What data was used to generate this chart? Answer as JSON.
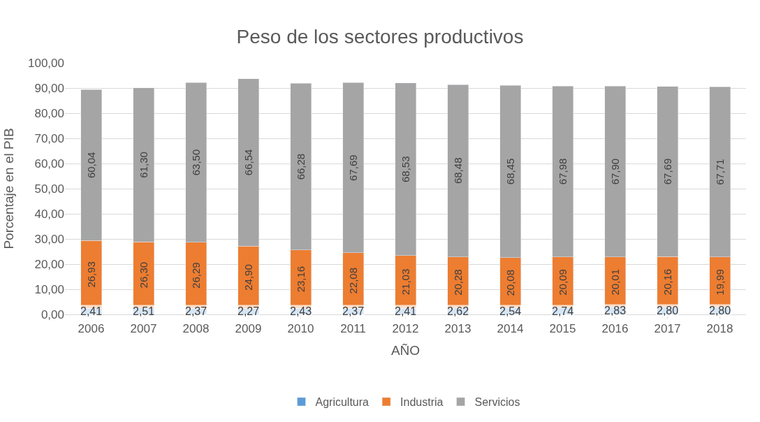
{
  "chart_data": {
    "type": "bar",
    "stacked": true,
    "title": "Peso de los sectores productivos",
    "xlabel": "AÑO",
    "ylabel": "Porcentaje en el PIB",
    "categories": [
      "2006",
      "2007",
      "2008",
      "2009",
      "2010",
      "2011",
      "2012",
      "2013",
      "2014",
      "2015",
      "2016",
      "2017",
      "2018"
    ],
    "series": [
      {
        "name": "Agricultura",
        "color": "#5b9bd5",
        "values": [
          2.41,
          2.51,
          2.37,
          2.27,
          2.43,
          2.37,
          2.41,
          2.62,
          2.54,
          2.74,
          2.83,
          2.8,
          2.8
        ],
        "value_labels": [
          "2,41",
          "2,51",
          "2,37",
          "2,27",
          "2,43",
          "2,37",
          "2,41",
          "2,62",
          "2,54",
          "2,74",
          "2,83",
          "2,80",
          "2,80"
        ]
      },
      {
        "name": "Industria",
        "color": "#ed7d31",
        "values": [
          26.93,
          26.3,
          26.29,
          24.9,
          23.16,
          22.08,
          21.03,
          20.28,
          20.08,
          20.09,
          20.01,
          20.16,
          19.99
        ],
        "value_labels": [
          "26,93",
          "26,30",
          "26,29",
          "24,90",
          "23,16",
          "22,08",
          "21,03",
          "20,28",
          "20,08",
          "20,09",
          "20,01",
          "20,16",
          "19,99"
        ]
      },
      {
        "name": "Servicios",
        "color": "#a5a5a5",
        "values": [
          60.04,
          61.3,
          63.5,
          66.54,
          66.28,
          67.69,
          68.53,
          68.48,
          68.45,
          67.98,
          67.9,
          67.69,
          67.71
        ],
        "value_labels": [
          "60,04",
          "61,30",
          "63,50",
          "66,54",
          "66,28",
          "67,69",
          "68,53",
          "68,48",
          "68,45",
          "67,98",
          "67,90",
          "67,69",
          "67,71"
        ]
      }
    ],
    "ylim": [
      0,
      100
    ],
    "yticks": [
      {
        "value": 0,
        "label": "0,00"
      },
      {
        "value": 10,
        "label": "10,00"
      },
      {
        "value": 20,
        "label": "20,00"
      },
      {
        "value": 30,
        "label": "30,00"
      },
      {
        "value": 40,
        "label": "40,00"
      },
      {
        "value": 50,
        "label": "50,00"
      },
      {
        "value": 60,
        "label": "60,00"
      },
      {
        "value": 70,
        "label": "70,00"
      },
      {
        "value": 80,
        "label": "80,00"
      },
      {
        "value": 90,
        "label": "90,00"
      },
      {
        "value": 100,
        "label": "100,00"
      }
    ],
    "grid": "y",
    "legend": "bottom"
  }
}
